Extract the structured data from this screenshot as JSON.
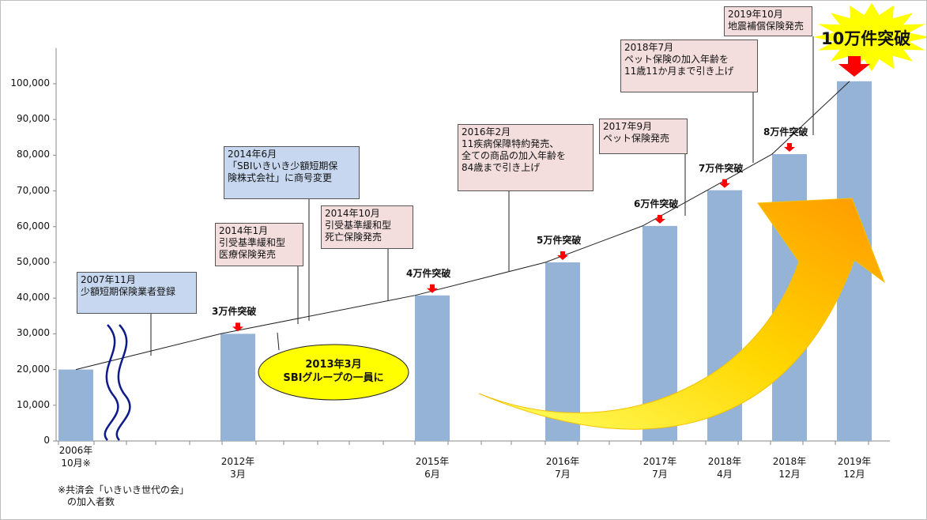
{
  "chart_data": {
    "type": "bar",
    "categories": [
      "2006年\n10月※",
      "2012年\n3月",
      "2015年\n6月",
      "2016年\n7月",
      "2017年\n7月",
      "2018年\n4月",
      "2018年\n12月",
      "2019年\n12月"
    ],
    "values": [
      20000,
      30000,
      40750,
      50000,
      60200,
      70200,
      80300,
      100700
    ],
    "ylim": [
      0,
      110000
    ],
    "yticks": [
      "0",
      "10,000",
      "20,000",
      "30,000",
      "40,000",
      "50,000",
      "60,000",
      "70,000",
      "80,000",
      "90,000",
      "100,000"
    ],
    "bar_color": "#95b3d7",
    "grid": false,
    "milestones": [
      "",
      "3万件突破",
      "4万件突破",
      "5万件突破",
      "6万件突破",
      "7万件突破",
      "8万件突破",
      "10万件突破"
    ],
    "footnote": "※共済会「いきいき世代の会」\n　の加入者数",
    "events": [
      {
        "text": "2007年11月\n少額短期保険業者登録",
        "color": "#c6d7ef"
      },
      {
        "text": "2014年6月\n「SBIいきいき少額短期保\n険株式会社」に商号変更",
        "color": "#c6d7ef"
      },
      {
        "text": "2014年1月\n引受基準緩和型\n医療保険発売",
        "color": "#f3dddd"
      },
      {
        "text": "2014年10月\n引受基準緩和型\n死亡保険発売",
        "color": "#f3dddd"
      },
      {
        "text": "2016年2月\n11疾病保障特約発売、\n全ての商品の加入年齢を\n84歳まで引き上げ",
        "color": "#f3dddd"
      },
      {
        "text": "2017年9月\nペット保険発売",
        "color": "#f3dddd"
      },
      {
        "text": "2018年7月\nペット保険の加入年齢を\n11歳11か月まで引き上げ",
        "color": "#f3dddd"
      },
      {
        "text": "2019年10月\n地震補償保険発売",
        "color": "#f3dddd"
      }
    ],
    "sbi_event": "2013年3月\nSBIグループの一員に",
    "accent_colors": {
      "arrow_red": "#ff0000",
      "ellipse": "#ffff00",
      "burst": "#ffff00",
      "growth_arrow": "#ffc000"
    }
  }
}
